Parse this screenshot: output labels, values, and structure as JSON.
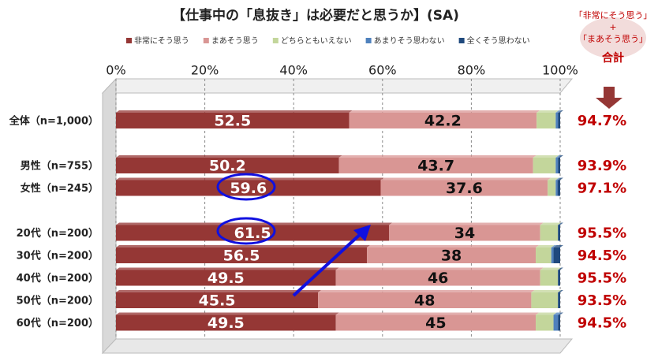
{
  "chart_data": {
    "type": "stacked_barh",
    "title": "【仕事中の「息抜き」は必要だと思うか】(SA)",
    "categories": [
      "全体（n=1,000）",
      null,
      "男性（n=755）",
      "女性（n=245）",
      null,
      "20代（n=200）",
      "30代（n=200）",
      "40代（n=200）",
      "50代（n=200）",
      "60代（n=200）"
    ],
    "series": [
      {
        "name": "非常にそう思う",
        "color": "#953735",
        "show_labels": true,
        "values": [
          52.5,
          null,
          50.2,
          59.6,
          null,
          61.5,
          56.5,
          49.5,
          45.5,
          49.5
        ]
      },
      {
        "name": "まあそう思う",
        "color": "#d99694",
        "show_labels": true,
        "values": [
          42.2,
          null,
          43.7,
          37.6,
          null,
          34.0,
          38.0,
          46.0,
          48.0,
          45.0
        ]
      },
      {
        "name": "どちらともいえない",
        "color": "#c3d69b",
        "show_labels": false,
        "values": [
          4.3,
          null,
          5.1,
          1.8,
          null,
          4.0,
          3.5,
          4.0,
          6.0,
          4.0
        ]
      },
      {
        "name": "あまりそう思わない",
        "color": "#4f81bd",
        "show_labels": false,
        "values": [
          0.5,
          null,
          0.5,
          0.4,
          null,
          0,
          0.5,
          0,
          0,
          1.0
        ]
      },
      {
        "name": "全くそう思わない",
        "color": "#1f497d",
        "show_labels": false,
        "values": [
          0.5,
          null,
          0.5,
          0.6,
          null,
          0.5,
          1.5,
          0.5,
          0.5,
          0.5
        ]
      }
    ],
    "xlim": [
      0,
      100
    ],
    "xticks": [
      {
        "value": 0,
        "label": "0%"
      },
      {
        "value": 20,
        "label": "20%"
      },
      {
        "value": 40,
        "label": "40%"
      },
      {
        "value": 60,
        "label": "60%"
      },
      {
        "value": 80,
        "label": "80%"
      },
      {
        "value": 100,
        "label": "100%"
      }
    ],
    "grid": true,
    "totals_header": [
      "「非常にそう思う」",
      "+",
      "「まあそう思う」",
      "合計"
    ],
    "totals": {
      "values": [
        94.7,
        null,
        93.9,
        97.1,
        null,
        95.5,
        94.5,
        95.5,
        93.5,
        94.5
      ],
      "value_labels": [
        "94.7%",
        null,
        "93.9%",
        "97.1%",
        null,
        "95.5%",
        "94.5%",
        "95.5%",
        "93.5%",
        "94.5%"
      ]
    }
  }
}
